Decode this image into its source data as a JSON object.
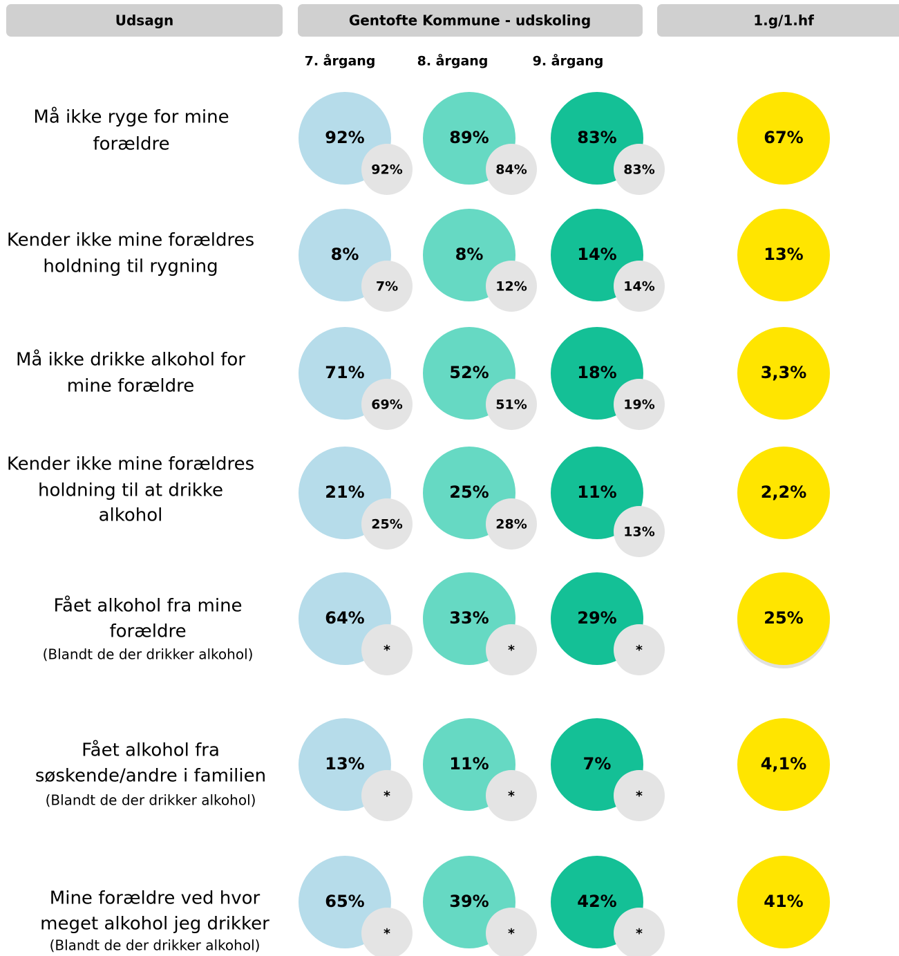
{
  "header": {
    "columns": [
      "Udsagn",
      "Gentofte Kommune - udskoling",
      "1.g/1.hf"
    ],
    "grades": [
      "7. årgang",
      "8. årgang",
      "9. årgang"
    ]
  },
  "rows": [
    {
      "label": [
        "Må ikke ryge for mine",
        "forældre"
      ],
      "grades": [
        {
          "main": "92%",
          "comparison": "92%"
        },
        {
          "main": "89%",
          "comparison": "84%"
        },
        {
          "main": "83%",
          "comparison": "83%"
        }
      ],
      "gymnasium": "67%"
    },
    {
      "label": [
        "Kender ikke mine forældres",
        "holdning til rygning"
      ],
      "grades": [
        {
          "main": "8%",
          "comparison": "7%"
        },
        {
          "main": "8%",
          "comparison": "12%"
        },
        {
          "main": "14%",
          "comparison": "14%"
        }
      ],
      "gymnasium": "13%"
    },
    {
      "label": [
        "Må ikke drikke alkohol for",
        "mine forældre"
      ],
      "grades": [
        {
          "main": "71%",
          "comparison": "69%"
        },
        {
          "main": "52%",
          "comparison": "51%"
        },
        {
          "main": "18%",
          "comparison": "19%"
        }
      ],
      "gymnasium": "3,3%"
    },
    {
      "label": [
        "Kender ikke mine forældres",
        "holdning til at drikke",
        "alkohol"
      ],
      "grades": [
        {
          "main": "21%",
          "comparison": "25%"
        },
        {
          "main": "25%",
          "comparison": "28%"
        },
        {
          "main": "11%",
          "comparison": "13%"
        }
      ],
      "gymnasium": "2,2%"
    },
    {
      "label": [
        "Fået alkohol fra mine",
        "forældre"
      ],
      "note": "(Blandt de der drikker alkohol)",
      "grades": [
        {
          "main": "64%",
          "comparison": "*"
        },
        {
          "main": "33%",
          "comparison": "*"
        },
        {
          "main": "29%",
          "comparison": "*"
        }
      ],
      "gymnasium": "25%"
    },
    {
      "label": [
        "Fået alkohol fra",
        "søskende/andre i familien"
      ],
      "note": "(Blandt de der drikker alkohol)",
      "grades": [
        {
          "main": "13%",
          "comparison": "*"
        },
        {
          "main": "11%",
          "comparison": "*"
        },
        {
          "main": "7%",
          "comparison": "*"
        }
      ],
      "gymnasium": "4,1%"
    },
    {
      "label": [
        "Mine forældre ved hvor",
        "meget alkohol jeg drikker"
      ],
      "note": "(Blandt de der drikker alkohol)",
      "grades": [
        {
          "main": "65%",
          "comparison": "*"
        },
        {
          "main": "39%",
          "comparison": "*"
        },
        {
          "main": "42%",
          "comparison": "*"
        }
      ],
      "gymnasium": "41%"
    }
  ]
}
